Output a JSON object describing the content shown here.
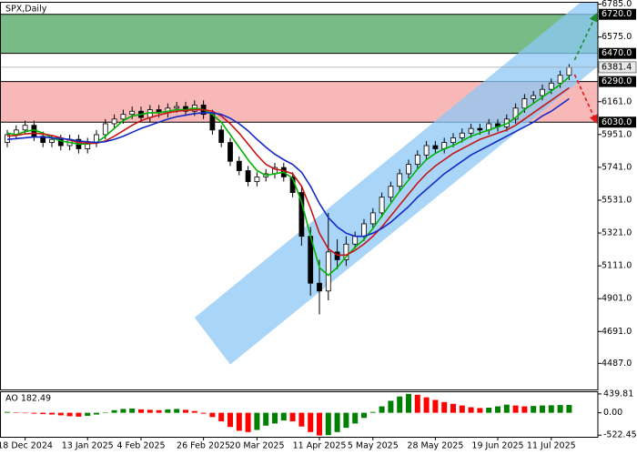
{
  "chart_data": [
    {
      "type": "candlestick",
      "title": "SPX,Daily",
      "categories": [
        null,
        null,
        "18 Dec 2024",
        null,
        null,
        null,
        null,
        null,
        null,
        "13 Jan 2025",
        null,
        null,
        null,
        null,
        null,
        "4 Feb 2025",
        null,
        null,
        null,
        null,
        null,
        null,
        "26 Feb 2025",
        null,
        null,
        null,
        null,
        null,
        "20 Mar 2025",
        null,
        null,
        null,
        null,
        null,
        null,
        "11 Apr 2025",
        null,
        null,
        null,
        null,
        null,
        "5 May 2025",
        null,
        null,
        null,
        null,
        null,
        null,
        "28 May 2025",
        null,
        null,
        null,
        null,
        null,
        null,
        "19 Jun 2025",
        null,
        null,
        null,
        null,
        null,
        "11 Jul 2025",
        null,
        null
      ],
      "open": [
        5900,
        5950,
        5980,
        6010,
        5940,
        5900,
        5920,
        5880,
        5920,
        5860,
        5900,
        5950,
        6020,
        6050,
        6080,
        6100,
        6060,
        6110,
        6090,
        6120,
        6130,
        6100,
        6140,
        6080,
        5980,
        5900,
        5780,
        5720,
        5650,
        5680,
        5700,
        5740,
        5680,
        5580,
        5300,
        5000,
        4950,
        5200,
        5150,
        5250,
        5300,
        5380,
        5450,
        5550,
        5620,
        5700,
        5760,
        5820,
        5880,
        5860,
        5900,
        5930,
        5960,
        5990,
        5980,
        6020,
        6000,
        6050,
        6120,
        6180,
        6200,
        6240,
        6280,
        6330
      ],
      "high": [
        5980,
        6010,
        6040,
        6040,
        5970,
        5950,
        5950,
        5950,
        5950,
        5930,
        5980,
        6050,
        6080,
        6110,
        6130,
        6130,
        6140,
        6140,
        6150,
        6160,
        6160,
        6170,
        6170,
        6110,
        6010,
        5930,
        5810,
        5750,
        5710,
        5730,
        5770,
        5770,
        5710,
        5620,
        5360,
        5150,
        5450,
        5280,
        5300,
        5330,
        5410,
        5480,
        5580,
        5650,
        5730,
        5790,
        5850,
        5910,
        5910,
        5930,
        5960,
        5990,
        6020,
        6020,
        6050,
        6050,
        6080,
        6150,
        6210,
        6230,
        6270,
        6310,
        6360,
        6401
      ],
      "low": [
        5870,
        5920,
        5950,
        5910,
        5870,
        5870,
        5850,
        5850,
        5830,
        5830,
        5870,
        5920,
        5990,
        6020,
        6050,
        6030,
        6030,
        6060,
        6060,
        6090,
        6070,
        6070,
        6050,
        5950,
        5870,
        5750,
        5690,
        5620,
        5620,
        5650,
        5670,
        5650,
        5550,
        5240,
        4920,
        4800,
        4890,
        5090,
        5110,
        5220,
        5270,
        5350,
        5420,
        5520,
        5590,
        5670,
        5730,
        5790,
        5830,
        5830,
        5870,
        5900,
        5930,
        5950,
        5950,
        5970,
        5970,
        6020,
        6090,
        6150,
        6170,
        6210,
        6250,
        6300
      ],
      "close": [
        5950,
        5980,
        6010,
        5940,
        5900,
        5920,
        5880,
        5920,
        5860,
        5900,
        5950,
        6020,
        6050,
        6080,
        6100,
        6060,
        6110,
        6090,
        6120,
        6130,
        6100,
        6140,
        6080,
        5980,
        5900,
        5780,
        5720,
        5650,
        5680,
        5700,
        5740,
        5680,
        5580,
        5300,
        5000,
        4950,
        5200,
        5150,
        5250,
        5300,
        5380,
        5450,
        5550,
        5620,
        5700,
        5760,
        5820,
        5880,
        5860,
        5900,
        5930,
        5960,
        5990,
        5980,
        6020,
        6000,
        6050,
        6120,
        6180,
        6200,
        6240,
        6280,
        6330,
        6381.4
      ],
      "up_color": "#ffffff",
      "down_color": "#000000",
      "moving_averages": [
        {
          "color": "#00b400",
          "values": [
            5960,
            5950,
            5970,
            5980,
            5960,
            5930,
            5910,
            5900,
            5890,
            5890,
            5900,
            5940,
            5990,
            6040,
            6070,
            6080,
            6090,
            6090,
            6100,
            6110,
            6110,
            6120,
            6110,
            6080,
            6030,
            5950,
            5870,
            5790,
            5720,
            5690,
            5700,
            5710,
            5670,
            5520,
            5300,
            5100,
            5050,
            5100,
            5170,
            5230,
            5280,
            5350,
            5430,
            5510,
            5590,
            5660,
            5730,
            5790,
            5830,
            5860,
            5880,
            5910,
            5940,
            5960,
            5980,
            6000,
            6020,
            6060,
            6110,
            6150,
            6190,
            6230,
            6270,
            6320
          ]
        },
        {
          "color": "#c81414",
          "values": [
            5940,
            5945,
            5955,
            5960,
            5955,
            5945,
            5930,
            5915,
            5900,
            5895,
            5895,
            5910,
            5940,
            5975,
            6010,
            6040,
            6060,
            6075,
            6090,
            6100,
            6105,
            6110,
            6110,
            6100,
            6070,
            6020,
            5960,
            5890,
            5820,
            5760,
            5730,
            5720,
            5700,
            5620,
            5480,
            5320,
            5220,
            5180,
            5180,
            5210,
            5250,
            5300,
            5360,
            5430,
            5500,
            5570,
            5640,
            5700,
            5750,
            5790,
            5830,
            5860,
            5890,
            5920,
            5940,
            5960,
            5980,
            6010,
            6050,
            6090,
            6130,
            6170,
            6210,
            6250
          ]
        },
        {
          "color": "#1428c8",
          "values": [
            5920,
            5925,
            5930,
            5935,
            5935,
            5930,
            5925,
            5920,
            5910,
            5905,
            5900,
            5905,
            5920,
            5940,
            5965,
            5990,
            6010,
            6030,
            6050,
            6065,
            6075,
            6085,
            6090,
            6090,
            6080,
            6055,
            6020,
            5975,
            5920,
            5870,
            5825,
            5790,
            5760,
            5710,
            5620,
            5510,
            5420,
            5360,
            5320,
            5300,
            5300,
            5320,
            5350,
            5390,
            5440,
            5490,
            5550,
            5600,
            5650,
            5700,
            5740,
            5780,
            5820,
            5850,
            5880,
            5910,
            5940,
            5970,
            6000,
            6030,
            6070,
            6100,
            6140,
            6180
          ]
        }
      ],
      "zones": [
        {
          "top": {
            "value": 6720,
            "label": "6720.0"
          },
          "bottom": {
            "value": 6470,
            "label": "6470.0"
          },
          "color": "#3e9e52"
        },
        {
          "top": {
            "value": 6290,
            "label": "6290.0"
          },
          "bottom": {
            "value": 6030,
            "label": "6030.0"
          },
          "color": "#f59a9a"
        }
      ],
      "channel": {
        "color": "#8cc8f5",
        "lower": [
          [
            25,
            4480
          ],
          [
            66.5,
            6400
          ]
        ],
        "upper": [
          [
            21,
            4780
          ],
          [
            66.5,
            6900
          ]
        ]
      },
      "ylim": [
        4320,
        6800
      ],
      "yticks": [
        {
          "value": 6785,
          "label": "6785.0"
        },
        {
          "value": 6575,
          "label": "6575.0"
        },
        {
          "value": 6161,
          "label": "6161.0"
        },
        {
          "value": 5951,
          "label": "5951.0"
        },
        {
          "value": 5741,
          "label": "5741.0"
        },
        {
          "value": 5531,
          "label": "5531.0"
        },
        {
          "value": 5321,
          "label": "5321.0"
        },
        {
          "value": 5111,
          "label": "5111.0"
        },
        {
          "value": 4901,
          "label": "4901.0"
        },
        {
          "value": 4691,
          "label": "4691.0"
        },
        {
          "value": 4487,
          "label": "4487.0"
        }
      ]
    },
    {
      "type": "bar",
      "title": "AO 182.49",
      "values": [
        20,
        10,
        -10,
        -20,
        -30,
        -40,
        -60,
        -80,
        -90,
        -70,
        -40,
        10,
        60,
        90,
        100,
        80,
        70,
        60,
        80,
        90,
        70,
        40,
        -20,
        -100,
        -200,
        -330,
        -420,
        -450,
        -400,
        -300,
        -250,
        -180,
        -200,
        -320,
        -450,
        -530,
        -520,
        -450,
        -350,
        -250,
        -120,
        20,
        150,
        280,
        380,
        440,
        420,
        360,
        300,
        250,
        210,
        170,
        130,
        110,
        120,
        150,
        190,
        170,
        150,
        160,
        170,
        175,
        180,
        182.49
      ],
      "up_color": "#008000",
      "down_color": "#ff0000",
      "ylim": [
        -560,
        480
      ],
      "yticks": [
        {
          "value": 439.81,
          "label": "439.81"
        },
        {
          "value": 0,
          "label": "0.00"
        },
        {
          "value": -522.45,
          "label": "-522.45"
        }
      ]
    }
  ]
}
